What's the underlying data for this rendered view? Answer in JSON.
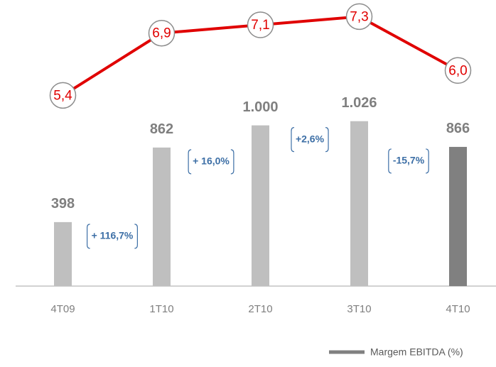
{
  "chart_data": {
    "type": "bar_line",
    "categories": [
      "4T09",
      "1T10",
      "2T10",
      "3T10",
      "4T10"
    ],
    "series": [
      {
        "type": "bar",
        "colors": [
          "#bfbfbf",
          "#bfbfbf",
          "#bfbfbf",
          "#bfbfbf",
          "#808080"
        ],
        "values": [
          398,
          862,
          1000,
          1026,
          866
        ],
        "value_labels": [
          "398",
          "862",
          "1.000",
          "1.026",
          "866"
        ]
      },
      {
        "type": "line",
        "name": "Margem EBITDA (%)",
        "axis": "y2",
        "color": "#e00000",
        "legend_color": "#808080",
        "values": [
          5.4,
          6.9,
          7.1,
          7.3,
          6.0
        ],
        "value_labels": [
          "5,4",
          "6,9",
          "7,1",
          "7,3",
          "6,0"
        ]
      }
    ],
    "annotations": [
      "+ 116,7%",
      "+ 16,0%",
      "+2,6%",
      "-15,7%"
    ],
    "ylim": [
      0,
      1780
    ],
    "y2lim": [
      0.8,
      7.7
    ],
    "legend": "bottom-right"
  }
}
